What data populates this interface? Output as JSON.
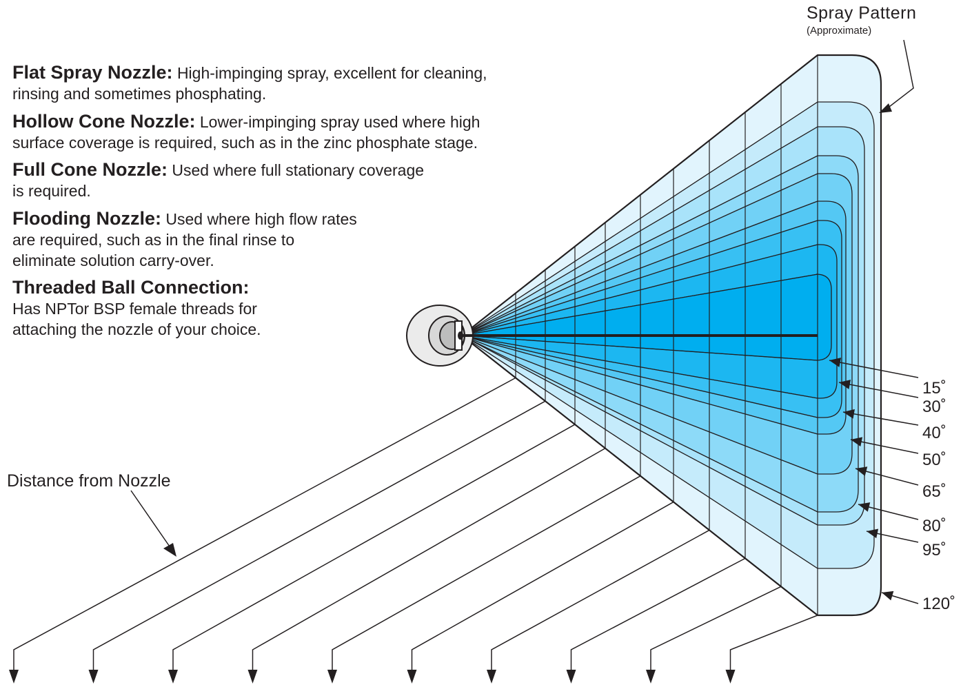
{
  "spray_pattern": {
    "title": "Spray Pattern",
    "subtitle": "(Approximate)"
  },
  "distance_label": "Distance from Nozzle",
  "nozzle_types": [
    {
      "term": "Flat Spray Nozzle:",
      "text": "High-impinging spray, excellent for cleaning,",
      "text2": "rinsing and sometimes phosphating."
    },
    {
      "term": "Hollow Cone Nozzle:",
      "text": "Lower-impinging spray used where high",
      "text2": "surface coverage is required, such as in the zinc phosphate stage."
    },
    {
      "term": "Full Cone Nozzle:",
      "text": "Used where full stationary coverage",
      "text2": "is required."
    },
    {
      "term": "Flooding Nozzle:",
      "text": "Used where high flow rates",
      "text2": "are required, such as in the final rinse to",
      "text3": "eliminate solution carry-over."
    },
    {
      "term": "Threaded Ball Connection:",
      "text": "",
      "text2": "Has NPTor BSP female threads for",
      "text3": "attaching the nozzle of your choice."
    }
  ],
  "angles": [
    "15˚",
    "30˚",
    "40˚",
    "50˚",
    "65˚",
    "80˚",
    "95˚",
    "120˚"
  ],
  "colors": {
    "outer": "#e1f4fd",
    "inner": "#00aeef",
    "line": "#231f20"
  }
}
